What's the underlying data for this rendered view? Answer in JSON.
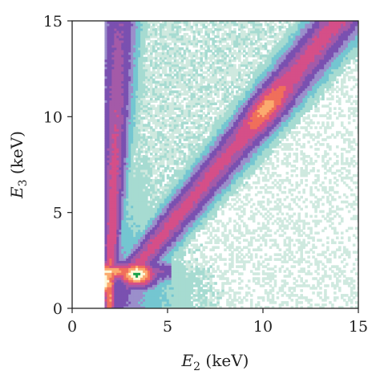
{
  "chart_data": {
    "type": "heatmap",
    "title": "",
    "xlabel": {
      "main": "E",
      "sub": "2",
      "unit": " (keV)"
    },
    "ylabel": {
      "main": "E",
      "sub": "3",
      "unit": " (keV)"
    },
    "xlim": [
      0,
      15
    ],
    "ylim": [
      0,
      15
    ],
    "xticks": [
      0,
      5,
      10,
      15
    ],
    "yticks": [
      0,
      5,
      10,
      15
    ],
    "xtick_labels": [
      "0",
      "5",
      "10",
      "15"
    ],
    "ytick_labels": [
      "0",
      "5",
      "10",
      "15"
    ],
    "grid": false,
    "legend": "none",
    "data_region": {
      "x_min": 1.7,
      "x_max": 15,
      "y_min": 0,
      "y_max": 15
    },
    "colorscale": [
      "#ffffff",
      "#cfe9df",
      "#a6dbd1",
      "#74c6d1",
      "#9b8fcb",
      "#7a50b0",
      "#a45aa8",
      "#d54f88",
      "#f06f5b",
      "#fbaa6e",
      "#fdf7d7",
      "#19a24a"
    ],
    "features": [
      {
        "name": "diagonal ridge",
        "from": [
          3.2,
          2.0
        ],
        "to": [
          15,
          15
        ],
        "peak_at": [
          10.2,
          10.5
        ]
      },
      {
        "name": "vertical ridge",
        "from": [
          1.9,
          2.5
        ],
        "to": [
          2.0,
          15
        ]
      },
      {
        "name": "horizontal ridge",
        "from": [
          2.0,
          1.9
        ],
        "to": [
          4.8,
          1.9
        ]
      },
      {
        "name": "core peak",
        "at": [
          3.4,
          1.8
        ]
      },
      {
        "name": "secondary peak",
        "at": [
          1.75,
          1.5
        ]
      }
    ]
  }
}
